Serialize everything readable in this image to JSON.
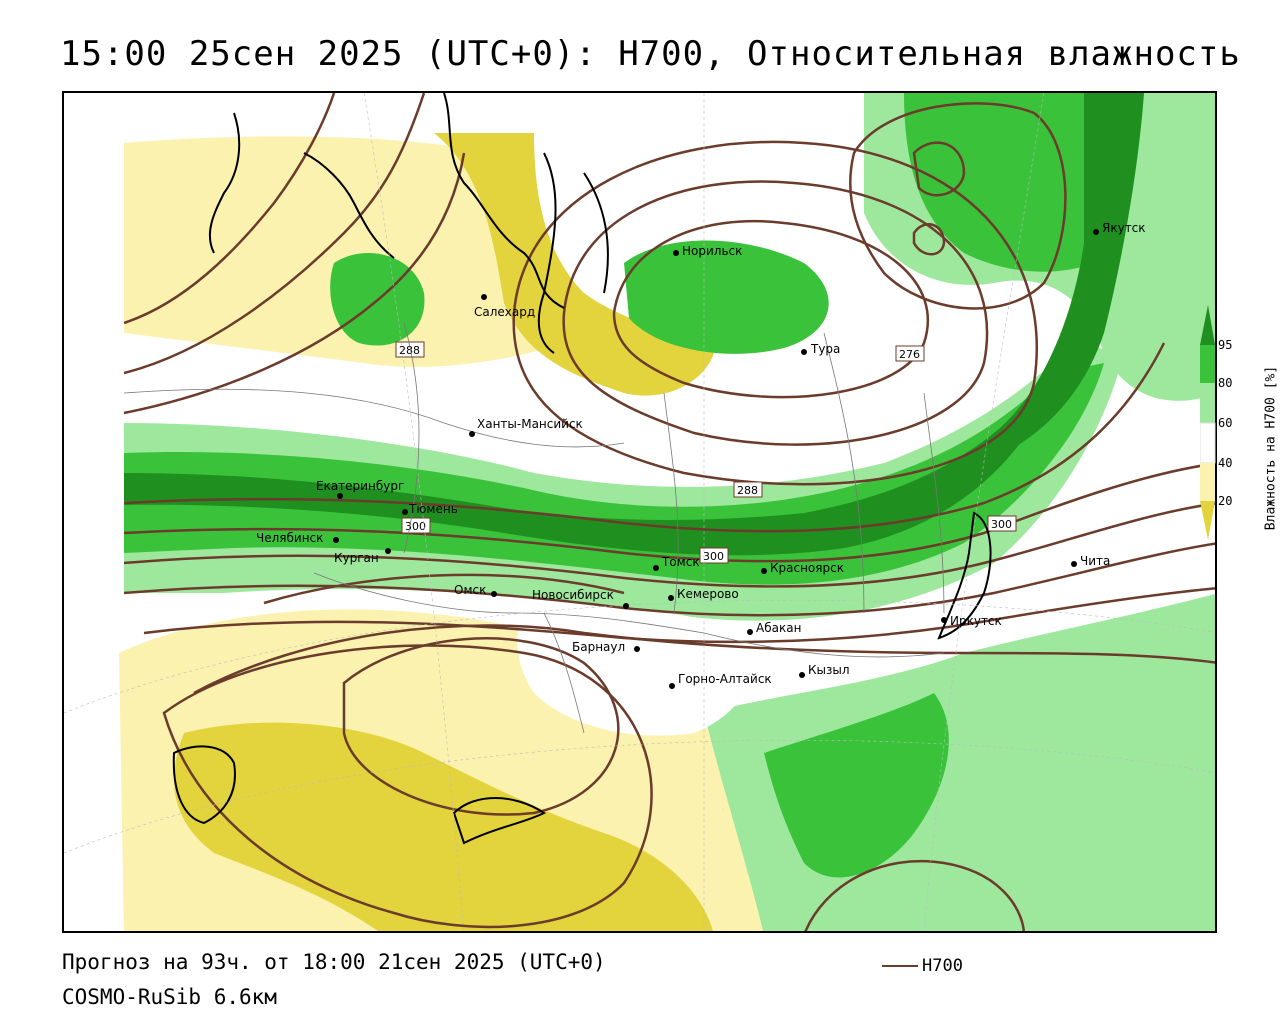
{
  "header": {
    "title": "15:00 25сен 2025 (UTC+0): H700, Относительная влажность"
  },
  "footer": {
    "forecast": "Прогноз на 93ч. от 18:00 21сен 2025 (UTC+0)",
    "model": "COSMO-RuSib 6.6км",
    "line_legend": "H700"
  },
  "legend": {
    "axis_label": "Влажность на H700 [%]",
    "ticks": [
      "95",
      "80",
      "60",
      "40",
      "20"
    ],
    "colors": {
      "c95": "#1f8f1f",
      "c80": "#3bc23b",
      "c60": "#9ee89e",
      "c40": "#ffffff",
      "c30": "#fbf2b0",
      "c20": "#e3d33c",
      "contour": "#6b3b2b"
    }
  },
  "cities": [
    {
      "name": "Норильск"
    },
    {
      "name": "Якутск"
    },
    {
      "name": "Салехард"
    },
    {
      "name": "Тура"
    },
    {
      "name": "Ханты-Мансийск"
    },
    {
      "name": "Екатеринбург"
    },
    {
      "name": "Тюмень"
    },
    {
      "name": "Челябинск"
    },
    {
      "name": "Курган"
    },
    {
      "name": "Омск"
    },
    {
      "name": "Новосибирск"
    },
    {
      "name": "Томск"
    },
    {
      "name": "Кемерово"
    },
    {
      "name": "Красноярск"
    },
    {
      "name": "Абакан"
    },
    {
      "name": "Барнаул"
    },
    {
      "name": "Горно-Алтайск"
    },
    {
      "name": "Кызыл"
    },
    {
      "name": "Иркутск"
    },
    {
      "name": "Чита"
    }
  ],
  "isoline_labels": [
    "288",
    "276",
    "288",
    "300",
    "300",
    "300"
  ]
}
